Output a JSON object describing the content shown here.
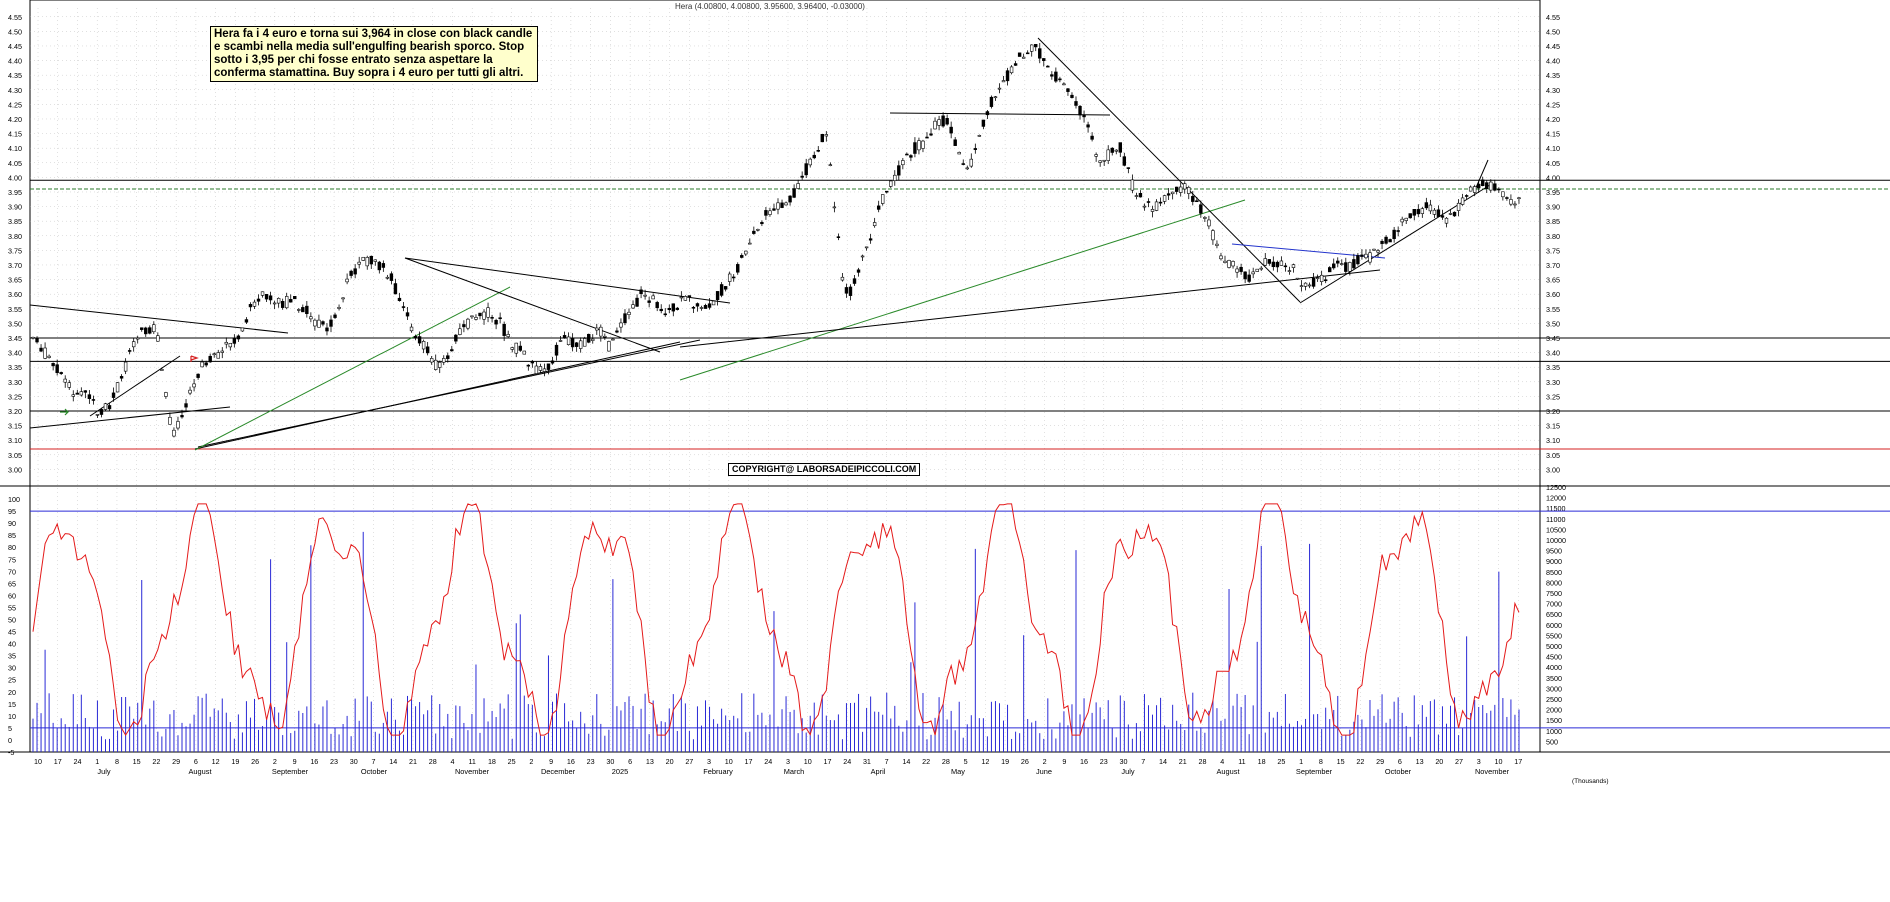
{
  "header": {
    "title": "Hera (4.00800, 4.00800, 3.95600, 3.96400, -0.03000)"
  },
  "note": {
    "text": "Hera fa i 4 euro e torna sui 3,964 in close con black candle e scambi nella media sull'engulfing bearish sporco. Stop sotto i 3,95 per chi fosse entrato senza aspettare la conferma stamattina. Buy sopra i 4 euro per tutti gli altri."
  },
  "copyright": {
    "text": "COPYRIGHT@ LABORSADEIPICCOLI.COM"
  },
  "colors": {
    "candle": "#000000",
    "trend": "#000000",
    "green_trend": "#2a8a2a",
    "blue_trend": "#2233cc",
    "support_red": "#d62020",
    "oscillator": "#e41a1a",
    "volume": "#2a2ad6",
    "level_line": "#2a2ad6",
    "grid": "#b4b4b4"
  },
  "chart_data": [
    {
      "type": "candlestick",
      "title": "Hera (4.00800, 4.00800, 3.95600, 3.96400, -0.03000)",
      "ylim": [
        2.95,
        4.58
      ],
      "y_ticks": [
        "4.55",
        "4.50",
        "4.45",
        "4.40",
        "4.35",
        "4.30",
        "4.25",
        "4.20",
        "4.15",
        "4.10",
        "4.05",
        "4.00",
        "3.95",
        "3.90",
        "3.85",
        "3.80",
        "3.75",
        "3.70",
        "3.65",
        "3.60",
        "3.55",
        "3.50",
        "3.45",
        "3.40",
        "3.35",
        "3.30",
        "3.25",
        "3.20",
        "3.15",
        "3.10",
        "3.05",
        "3.00"
      ],
      "last_bar": {
        "open": 4.008,
        "high": 4.008,
        "low": 3.956,
        "close": 3.964,
        "change": -0.03
      },
      "horizontal_levels": [
        {
          "value": 3.99,
          "style": "solid",
          "color": "#000000"
        },
        {
          "value": 3.96,
          "style": "dashed",
          "color": "#2a7a2a"
        },
        {
          "value": 3.45,
          "style": "solid",
          "color": "#000000"
        },
        {
          "value": 3.37,
          "style": "solid",
          "color": "#000000"
        },
        {
          "value": 3.2,
          "style": "solid",
          "color": "#000000"
        },
        {
          "value": 3.07,
          "style": "solid",
          "color": "#d62020"
        }
      ],
      "price_path": [
        [
          0,
          3.45
        ],
        [
          3,
          3.38
        ],
        [
          6,
          3.3
        ],
        [
          8,
          3.25
        ],
        [
          10,
          3.27
        ],
        [
          12,
          3.2
        ],
        [
          14,
          3.22
        ],
        [
          16,
          3.3
        ],
        [
          18,
          3.4
        ],
        [
          20,
          3.47
        ],
        [
          22,
          3.49
        ],
        [
          23,
          3.44
        ],
        [
          24,
          3.3
        ],
        [
          25,
          3.18
        ],
        [
          26,
          3.12
        ],
        [
          28,
          3.2
        ],
        [
          30,
          3.32
        ],
        [
          32,
          3.38
        ],
        [
          34,
          3.4
        ],
        [
          36,
          3.42
        ],
        [
          38,
          3.47
        ],
        [
          40,
          3.55
        ],
        [
          42,
          3.6
        ],
        [
          44,
          3.58
        ],
        [
          46,
          3.57
        ],
        [
          48,
          3.58
        ],
        [
          50,
          3.55
        ],
        [
          52,
          3.5
        ],
        [
          54,
          3.48
        ],
        [
          56,
          3.55
        ],
        [
          58,
          3.65
        ],
        [
          60,
          3.7
        ],
        [
          62,
          3.72
        ],
        [
          64,
          3.7
        ],
        [
          66,
          3.65
        ],
        [
          68,
          3.55
        ],
        [
          70,
          3.48
        ],
        [
          72,
          3.42
        ],
        [
          74,
          3.36
        ],
        [
          76,
          3.38
        ],
        [
          78,
          3.45
        ],
        [
          80,
          3.5
        ],
        [
          82,
          3.52
        ],
        [
          84,
          3.54
        ],
        [
          86,
          3.5
        ],
        [
          88,
          3.43
        ],
        [
          90,
          3.4
        ],
        [
          92,
          3.35
        ],
        [
          94,
          3.33
        ],
        [
          96,
          3.4
        ],
        [
          98,
          3.45
        ],
        [
          100,
          3.42
        ],
        [
          102,
          3.44
        ],
        [
          104,
          3.48
        ],
        [
          106,
          3.42
        ],
        [
          108,
          3.5
        ],
        [
          110,
          3.55
        ],
        [
          112,
          3.6
        ],
        [
          114,
          3.58
        ],
        [
          116,
          3.55
        ],
        [
          118,
          3.56
        ],
        [
          120,
          3.58
        ],
        [
          122,
          3.57
        ],
        [
          124,
          3.55
        ],
        [
          126,
          3.6
        ],
        [
          128,
          3.65
        ],
        [
          130,
          3.7
        ],
        [
          132,
          3.78
        ],
        [
          134,
          3.85
        ],
        [
          136,
          3.9
        ],
        [
          138,
          3.91
        ],
        [
          140,
          3.95
        ],
        [
          142,
          4.02
        ],
        [
          144,
          4.1
        ],
        [
          146,
          4.15
        ],
        [
          147,
          3.95
        ],
        [
          148,
          3.8
        ],
        [
          149,
          3.62
        ],
        [
          150,
          3.6
        ],
        [
          152,
          3.68
        ],
        [
          154,
          3.8
        ],
        [
          156,
          3.92
        ],
        [
          158,
          3.98
        ],
        [
          160,
          4.05
        ],
        [
          162,
          4.1
        ],
        [
          164,
          4.12
        ],
        [
          166,
          4.18
        ],
        [
          168,
          4.2
        ],
        [
          170,
          4.1
        ],
        [
          172,
          4.02
        ],
        [
          174,
          4.15
        ],
        [
          176,
          4.25
        ],
        [
          178,
          4.3
        ],
        [
          180,
          4.38
        ],
        [
          182,
          4.42
        ],
        [
          184,
          4.45
        ],
        [
          186,
          4.4
        ],
        [
          188,
          4.35
        ],
        [
          190,
          4.3
        ],
        [
          192,
          4.25
        ],
        [
          194,
          4.18
        ],
        [
          196,
          4.05
        ],
        [
          198,
          4.08
        ],
        [
          200,
          4.1
        ],
        [
          202,
          3.98
        ],
        [
          204,
          3.92
        ],
        [
          206,
          3.9
        ],
        [
          208,
          3.92
        ],
        [
          210,
          3.95
        ],
        [
          212,
          3.96
        ],
        [
          214,
          3.92
        ],
        [
          216,
          3.85
        ],
        [
          218,
          3.75
        ],
        [
          220,
          3.7
        ],
        [
          222,
          3.68
        ],
        [
          224,
          3.66
        ],
        [
          226,
          3.7
        ],
        [
          228,
          3.71
        ],
        [
          230,
          3.7
        ],
        [
          232,
          3.68
        ],
        [
          234,
          3.62
        ],
        [
          236,
          3.65
        ],
        [
          238,
          3.67
        ],
        [
          240,
          3.7
        ],
        [
          242,
          3.69
        ],
        [
          244,
          3.72
        ],
        [
          246,
          3.73
        ],
        [
          248,
          3.76
        ],
        [
          250,
          3.8
        ],
        [
          252,
          3.85
        ],
        [
          254,
          3.88
        ],
        [
          256,
          3.9
        ],
        [
          258,
          3.88
        ],
        [
          260,
          3.85
        ],
        [
          262,
          3.9
        ],
        [
          264,
          3.95
        ],
        [
          266,
          3.98
        ],
        [
          268,
          3.97
        ],
        [
          270,
          3.95
        ],
        [
          272,
          3.9
        ],
        [
          274,
          3.96
        ]
      ],
      "x_axis": {
        "day_labels": [
          "10",
          "17",
          "24",
          "1",
          "8",
          "15",
          "22",
          "29",
          "6",
          "12",
          "19",
          "26",
          "2",
          "9",
          "16",
          "23",
          "30",
          "7",
          "14",
          "21",
          "28",
          "4",
          "11",
          "18",
          "25",
          "2",
          "9",
          "16",
          "23",
          "30",
          "6",
          "13",
          "20",
          "27",
          "3",
          "10",
          "17",
          "24",
          "3",
          "10",
          "17",
          "24",
          "31",
          "7",
          "14",
          "22",
          "28",
          "5",
          "12",
          "19",
          "26",
          "2",
          "9",
          "16",
          "23",
          "30",
          "7",
          "14",
          "21",
          "28",
          "4",
          "11",
          "18",
          "25",
          "1",
          "8",
          "15",
          "22",
          "29",
          "6",
          "13",
          "20",
          "27",
          "3",
          "10",
          "17"
        ],
        "month_labels": [
          "July",
          "August",
          "September",
          "October",
          "November",
          "December",
          "2025",
          "February",
          "March",
          "April",
          "May",
          "June",
          "July",
          "August",
          "September",
          "October",
          "November"
        ]
      }
    },
    {
      "type": "bar",
      "name": "volume",
      "ylim": [
        0,
        12500
      ],
      "y_ticks": [
        "12500",
        "12000",
        "11500",
        "11000",
        "10500",
        "10000",
        "9500",
        "9000",
        "8500",
        "8000",
        "7500",
        "7000",
        "6500",
        "6000",
        "5500",
        "5000",
        "4500",
        "4000",
        "3500",
        "3000",
        "2500",
        "2000",
        "1500",
        "1000",
        "500"
      ],
      "units": "(Thousands)",
      "typical_range": [
        1000,
        3500
      ],
      "max": 11500
    },
    {
      "type": "line",
      "name": "oscillator",
      "ylim": [
        -5,
        105
      ],
      "y_ticks": [
        "100",
        "95",
        "90",
        "85",
        "80",
        "75",
        "70",
        "65",
        "60",
        "55",
        "50",
        "45",
        "40",
        "35",
        "30",
        "25",
        "20",
        "15",
        "10",
        "5",
        "0",
        "-5"
      ],
      "reference_levels": [
        95,
        5
      ],
      "last_value": 53
    }
  ]
}
